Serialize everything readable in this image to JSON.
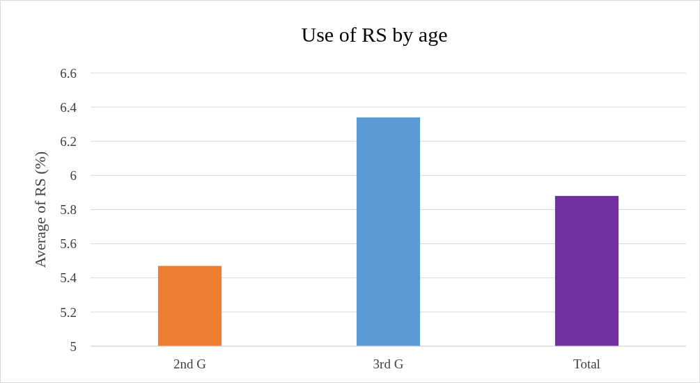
{
  "chart_data": {
    "type": "bar",
    "title": "Use of RS by age",
    "ylabel": "Average of RS (%)",
    "categories": [
      "2nd G",
      "3rd G",
      "Total"
    ],
    "values": [
      5.47,
      6.34,
      5.88
    ],
    "colors": [
      "#ed7d31",
      "#5b9bd5",
      "#7030a0"
    ],
    "ylim": [
      5,
      6.6
    ],
    "yticks": [
      5,
      5.2,
      5.4,
      5.6,
      5.8,
      6,
      6.2,
      6.4,
      6.6
    ],
    "grid": "y"
  }
}
